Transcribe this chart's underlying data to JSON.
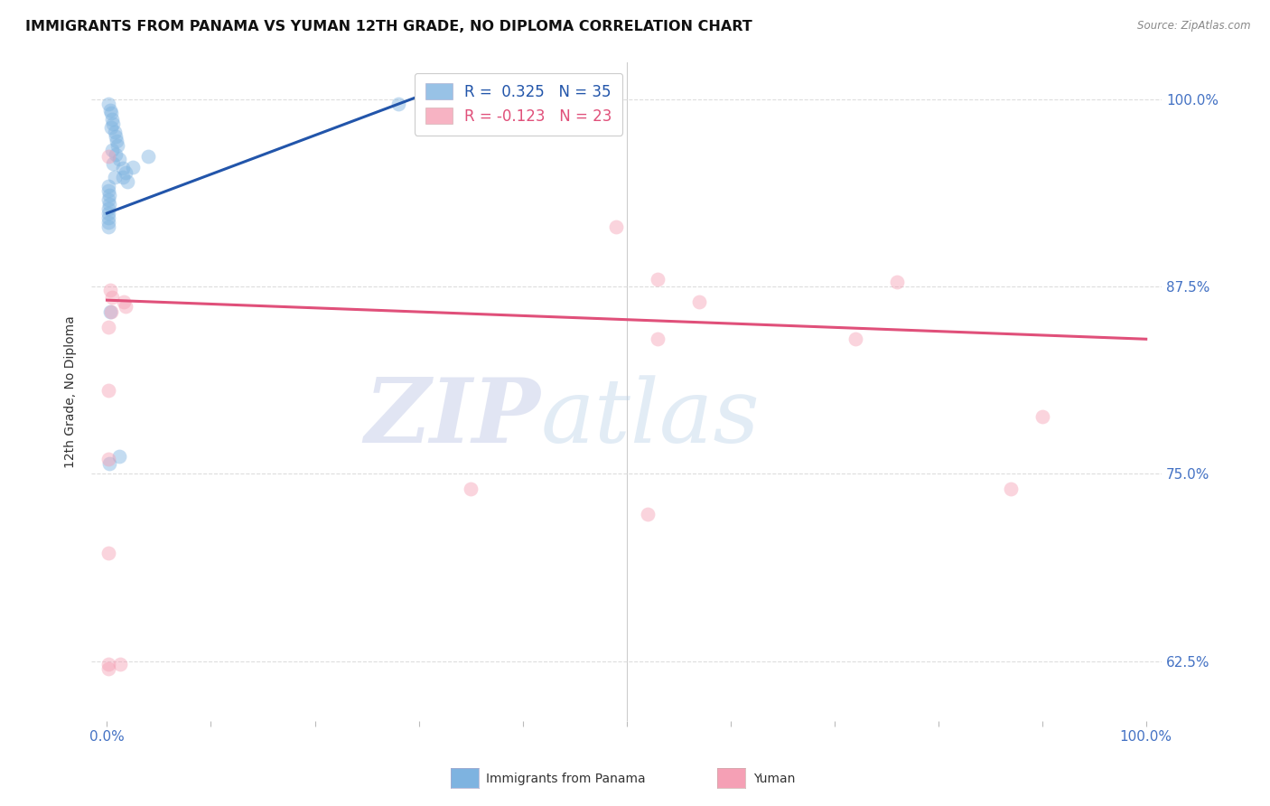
{
  "title": "IMMIGRANTS FROM PANAMA VS YUMAN 12TH GRADE, NO DIPLOMA CORRELATION CHART",
  "source": "Source: ZipAtlas.com",
  "ylabel": "12th Grade, No Diploma",
  "legend_blue_r": "0.325",
  "legend_blue_n": "35",
  "legend_pink_r": "-0.123",
  "legend_pink_n": "23",
  "watermark_zip": "ZIP",
  "watermark_atlas": "atlas",
  "blue_scatter": [
    [
      0.001,
      0.997
    ],
    [
      0.003,
      0.993
    ],
    [
      0.004,
      0.991
    ],
    [
      0.005,
      0.987
    ],
    [
      0.006,
      0.984
    ],
    [
      0.004,
      0.981
    ],
    [
      0.007,
      0.978
    ],
    [
      0.008,
      0.975
    ],
    [
      0.009,
      0.972
    ],
    [
      0.01,
      0.969
    ],
    [
      0.005,
      0.966
    ],
    [
      0.008,
      0.963
    ],
    [
      0.012,
      0.96
    ],
    [
      0.006,
      0.957
    ],
    [
      0.015,
      0.954
    ],
    [
      0.018,
      0.951
    ],
    [
      0.007,
      0.948
    ],
    [
      0.02,
      0.945
    ],
    [
      0.001,
      0.942
    ],
    [
      0.001,
      0.939
    ],
    [
      0.002,
      0.936
    ],
    [
      0.001,
      0.933
    ],
    [
      0.002,
      0.93
    ],
    [
      0.001,
      0.927
    ],
    [
      0.001,
      0.924
    ],
    [
      0.001,
      0.921
    ],
    [
      0.001,
      0.918
    ],
    [
      0.001,
      0.915
    ],
    [
      0.025,
      0.955
    ],
    [
      0.04,
      0.962
    ],
    [
      0.002,
      0.757
    ],
    [
      0.012,
      0.762
    ],
    [
      0.28,
      0.997
    ],
    [
      0.003,
      0.858
    ],
    [
      0.015,
      0.948
    ]
  ],
  "pink_scatter": [
    [
      0.003,
      0.873
    ],
    [
      0.005,
      0.868
    ],
    [
      0.016,
      0.865
    ],
    [
      0.018,
      0.862
    ],
    [
      0.004,
      0.858
    ],
    [
      0.001,
      0.848
    ],
    [
      0.001,
      0.806
    ],
    [
      0.001,
      0.76
    ],
    [
      0.001,
      0.697
    ],
    [
      0.001,
      0.623
    ],
    [
      0.013,
      0.623
    ],
    [
      0.49,
      0.915
    ],
    [
      0.53,
      0.88
    ],
    [
      0.57,
      0.865
    ],
    [
      0.72,
      0.84
    ],
    [
      0.53,
      0.84
    ],
    [
      0.76,
      0.878
    ],
    [
      0.9,
      0.788
    ],
    [
      0.87,
      0.74
    ],
    [
      0.001,
      0.962
    ],
    [
      0.35,
      0.74
    ],
    [
      0.52,
      0.723
    ],
    [
      0.001,
      0.62
    ]
  ],
  "blue_line_x": [
    0.0,
    0.3
  ],
  "blue_line_y": [
    0.924,
    1.002
  ],
  "pink_line_x": [
    0.0,
    1.0
  ],
  "pink_line_y": [
    0.866,
    0.84
  ],
  "ylim": [
    0.585,
    1.025
  ],
  "xlim": [
    -0.015,
    1.015
  ],
  "yticks": [
    0.625,
    0.75,
    0.875,
    1.0
  ],
  "ytick_labels": [
    "62.5%",
    "75.0%",
    "87.5%",
    "100.0%"
  ],
  "blue_color": "#7EB3E0",
  "blue_line_color": "#2255AA",
  "pink_color": "#F5A0B5",
  "pink_line_color": "#E0507A",
  "bg_color": "#FFFFFF",
  "grid_color": "#DDDDDD",
  "title_fontsize": 11.5,
  "label_fontsize": 10,
  "tick_fontsize": 10,
  "axis_label_color": "#4472C4",
  "scatter_size": 130,
  "scatter_alpha": 0.45
}
